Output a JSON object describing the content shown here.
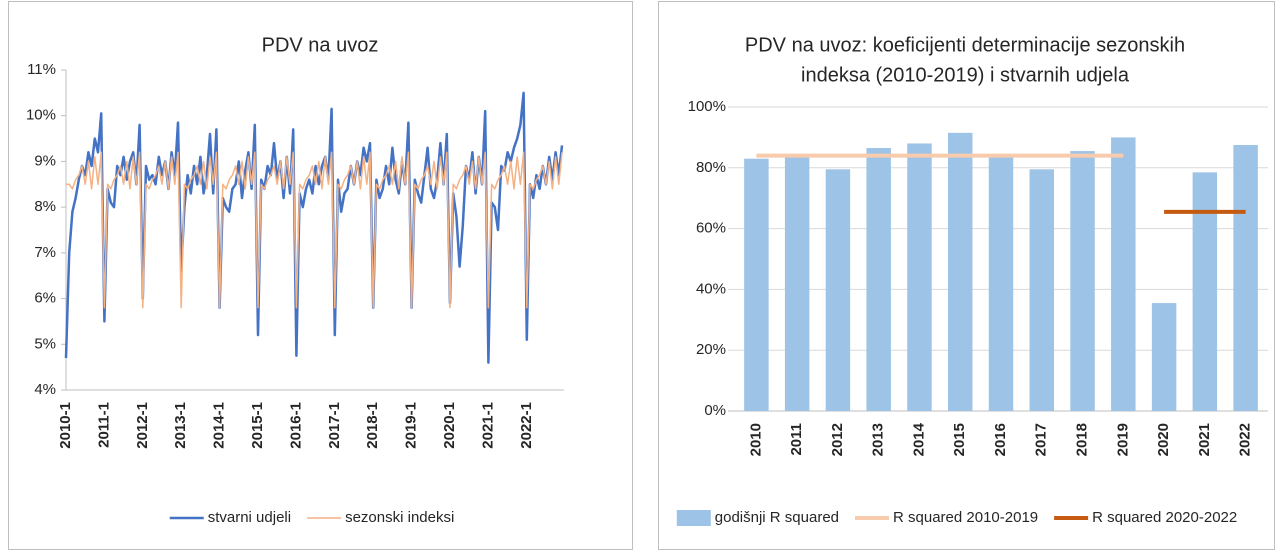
{
  "chart_data": [
    {
      "type": "line",
      "title": [
        "PDV na uvoz"
      ],
      "categories": [
        "2010-1",
        null,
        null,
        null,
        null,
        null,
        null,
        null,
        null,
        null,
        null,
        null,
        "2011-1",
        null,
        null,
        null,
        null,
        null,
        null,
        null,
        null,
        null,
        null,
        null,
        "2012-1",
        null,
        null,
        null,
        null,
        null,
        null,
        null,
        null,
        null,
        null,
        null,
        "2013-1",
        null,
        null,
        null,
        null,
        null,
        null,
        null,
        null,
        null,
        null,
        null,
        "2014-1",
        null,
        null,
        null,
        null,
        null,
        null,
        null,
        null,
        null,
        null,
        null,
        "2015-1",
        null,
        null,
        null,
        null,
        null,
        null,
        null,
        null,
        null,
        null,
        null,
        "2016-1",
        null,
        null,
        null,
        null,
        null,
        null,
        null,
        null,
        null,
        null,
        null,
        "2017-1",
        null,
        null,
        null,
        null,
        null,
        null,
        null,
        null,
        null,
        null,
        null,
        "2018-1",
        null,
        null,
        null,
        null,
        null,
        null,
        null,
        null,
        null,
        null,
        null,
        "2019-1",
        null,
        null,
        null,
        null,
        null,
        null,
        null,
        null,
        null,
        null,
        null,
        "2020-1",
        null,
        null,
        null,
        null,
        null,
        null,
        null,
        null,
        null,
        null,
        null,
        "2021-1",
        null,
        null,
        null,
        null,
        null,
        null,
        null,
        null,
        null,
        null,
        null,
        "2022-1",
        null,
        null,
        null,
        null,
        null,
        null,
        null,
        null,
        null,
        null,
        null
      ],
      "series": [
        {
          "name": "stvarni udjeli",
          "color": "#4472c4",
          "width": 2.5,
          "values": [
            4.7,
            7.0,
            7.9,
            8.2,
            8.6,
            8.9,
            8.7,
            9.2,
            8.9,
            9.5,
            9.2,
            10.05,
            5.5,
            8.4,
            8.1,
            8.0,
            8.9,
            8.7,
            9.1,
            8.6,
            9.0,
            9.2,
            8.5,
            9.8,
            6.0,
            8.9,
            8.6,
            8.7,
            8.5,
            9.1,
            8.7,
            9.0,
            8.4,
            9.2,
            8.7,
            9.85,
            6.6,
            8.0,
            8.7,
            8.3,
            8.9,
            8.5,
            9.1,
            8.3,
            8.7,
            9.6,
            8.3,
            9.7,
            5.8,
            8.2,
            8.0,
            7.9,
            8.4,
            8.5,
            9.0,
            8.2,
            8.8,
            9.2,
            8.4,
            9.8,
            5.2,
            8.6,
            8.4,
            8.9,
            8.7,
            9.4,
            8.6,
            9.0,
            8.2,
            9.1,
            8.3,
            9.7,
            4.75,
            8.3,
            8.0,
            8.4,
            8.6,
            8.3,
            8.9,
            8.5,
            8.9,
            9.1,
            8.6,
            10.15,
            5.2,
            8.6,
            7.9,
            8.3,
            8.4,
            8.9,
            8.5,
            9.0,
            8.7,
            9.3,
            9.0,
            9.4,
            5.8,
            8.6,
            8.2,
            8.4,
            8.9,
            8.5,
            9.3,
            8.6,
            8.3,
            9.0,
            8.5,
            9.85,
            5.8,
            8.6,
            8.3,
            8.1,
            8.7,
            9.3,
            8.4,
            8.2,
            8.6,
            9.4,
            8.5,
            9.6,
            5.9,
            8.3,
            7.8,
            6.7,
            7.6,
            8.9,
            8.6,
            9.2,
            8.3,
            9.1,
            8.5,
            10.1,
            4.6,
            8.1,
            8.0,
            7.5,
            8.9,
            8.8,
            9.2,
            9.0,
            9.3,
            9.5,
            9.8,
            10.5,
            5.1,
            8.5,
            8.2,
            8.7,
            8.4,
            8.9,
            8.5,
            9.1,
            8.6,
            9.2,
            8.7,
            9.35
          ]
        },
        {
          "name": "sezonski indeksi",
          "color": "#f4b183",
          "width": 1.5,
          "values": [
            8.5,
            8.5,
            8.4,
            8.6,
            8.7,
            8.9,
            8.5,
            9.0,
            8.4,
            9.1,
            8.5,
            9.2,
            5.8,
            8.5,
            8.4,
            8.6,
            8.7,
            8.9,
            8.5,
            9.0,
            8.4,
            9.1,
            8.5,
            9.2,
            5.8,
            8.5,
            8.4,
            8.6,
            8.7,
            8.9,
            8.5,
            9.0,
            8.4,
            9.1,
            8.5,
            9.2,
            5.8,
            8.5,
            8.4,
            8.6,
            8.7,
            8.9,
            8.5,
            9.0,
            8.4,
            9.1,
            8.5,
            9.2,
            5.8,
            8.5,
            8.4,
            8.6,
            8.7,
            8.9,
            8.5,
            9.0,
            8.4,
            9.1,
            8.5,
            9.2,
            5.8,
            8.5,
            8.4,
            8.6,
            8.7,
            8.9,
            8.5,
            9.0,
            8.4,
            9.1,
            8.5,
            9.2,
            5.8,
            8.5,
            8.4,
            8.6,
            8.7,
            8.9,
            8.5,
            9.0,
            8.4,
            9.1,
            8.5,
            9.2,
            5.8,
            8.5,
            8.4,
            8.6,
            8.7,
            8.9,
            8.5,
            9.0,
            8.4,
            9.1,
            8.5,
            9.2,
            5.8,
            8.5,
            8.4,
            8.6,
            8.7,
            8.9,
            8.5,
            9.0,
            8.4,
            9.1,
            8.5,
            9.2,
            5.8,
            8.5,
            8.4,
            8.6,
            8.7,
            8.9,
            8.5,
            9.0,
            8.4,
            9.1,
            8.5,
            9.2,
            5.8,
            8.5,
            8.4,
            8.6,
            8.7,
            8.9,
            8.5,
            9.0,
            8.4,
            9.1,
            8.5,
            9.2,
            5.8,
            8.5,
            8.4,
            8.6,
            8.7,
            8.9,
            8.5,
            9.0,
            8.4,
            9.1,
            8.5,
            9.2,
            5.8,
            8.5,
            8.4,
            8.6,
            8.7,
            8.9,
            8.5,
            9.0,
            8.4,
            9.1,
            8.5,
            9.2
          ]
        }
      ],
      "ylim": [
        4,
        11
      ],
      "yticks": [
        {
          "value": 4,
          "label": "4%"
        },
        {
          "value": 5,
          "label": "5%"
        },
        {
          "value": 6,
          "label": "6%"
        },
        {
          "value": 7,
          "label": "7%"
        },
        {
          "value": 8,
          "label": "8%"
        },
        {
          "value": 9,
          "label": "9%"
        },
        {
          "value": 10,
          "label": "10%"
        },
        {
          "value": 11,
          "label": "11%"
        }
      ],
      "grid": false
    },
    {
      "type": "bar",
      "title": [
        "PDV na uvoz: koeficijenti determinacije sezonskih",
        "indeksa (2010-2019) i stvarnih udjela"
      ],
      "categories": [
        "2010",
        "2011",
        "2012",
        "2013",
        "2014",
        "2015",
        "2016",
        "2017",
        "2018",
        "2019",
        "2020",
        "2021",
        "2022"
      ],
      "series": [
        {
          "name": "godišnji R squared",
          "type": "bar",
          "color": "#9dc3e6",
          "values": [
            83,
            84,
            79.5,
            86.5,
            88,
            91.5,
            83.5,
            79.5,
            85.5,
            90,
            35.5,
            78.5,
            87.5
          ]
        },
        {
          "name": "R squared 2010-2019",
          "type": "line",
          "color": "#f8cbad",
          "width": 4,
          "values": [
            84,
            84,
            84,
            84,
            84,
            84,
            84,
            84,
            84,
            84,
            null,
            null,
            null
          ]
        },
        {
          "name": "R squared 2020-2022",
          "type": "line",
          "color": "#c55a11",
          "width": 4,
          "values": [
            null,
            null,
            null,
            null,
            null,
            null,
            null,
            null,
            null,
            null,
            65.5,
            65.5,
            65.5
          ]
        }
      ],
      "ylim": [
        0,
        100
      ],
      "yticks": [
        {
          "value": 0,
          "label": "0%"
        },
        {
          "value": 20,
          "label": "20%"
        },
        {
          "value": 40,
          "label": "40%"
        },
        {
          "value": 60,
          "label": "60%"
        },
        {
          "value": 80,
          "label": "80%"
        },
        {
          "value": 100,
          "label": "100%"
        }
      ],
      "grid": true
    }
  ]
}
